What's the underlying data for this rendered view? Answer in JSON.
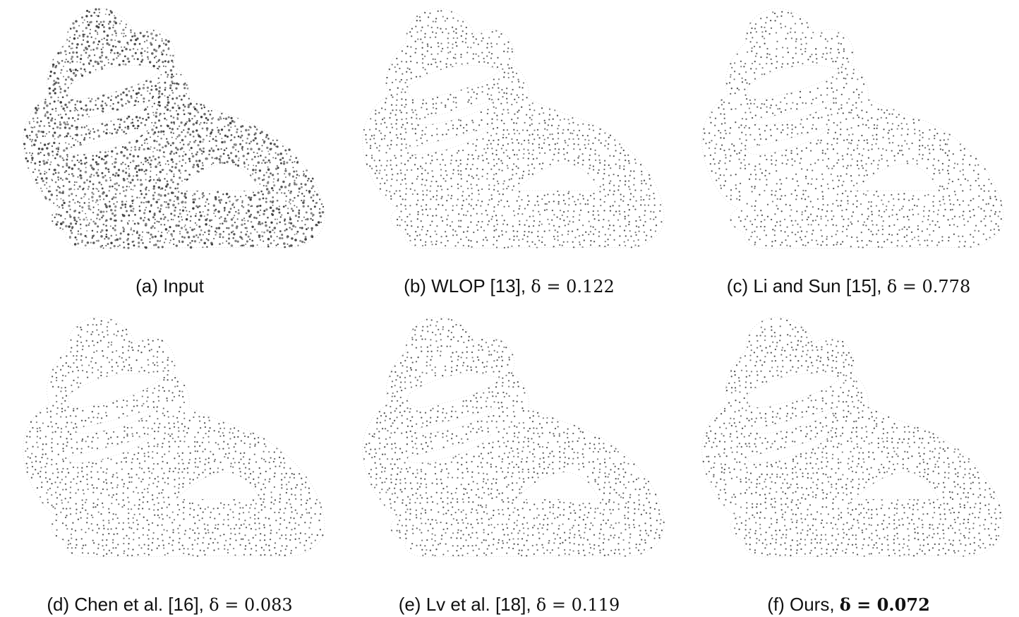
{
  "figure": {
    "panels": [
      {
        "id": "a",
        "label": "(a) Input",
        "metric_text": "",
        "metric_bold": false,
        "density": 0.7,
        "dot_color": "#555555",
        "noise": true
      },
      {
        "id": "b",
        "label": "(b) WLOP [13], ",
        "metric_text": "δ = 0.122",
        "metric_bold": false,
        "density": 0.5,
        "dot_color": "#6a6a6a",
        "noise": false
      },
      {
        "id": "c",
        "label": "(c) Li and Sun [15], ",
        "metric_text": "δ = 0.778",
        "metric_bold": false,
        "density": 0.4,
        "dot_color": "#5a5a5a",
        "noise": false
      },
      {
        "id": "d",
        "label": "(d) Chen et al. [16], ",
        "metric_text": "δ = 0.083",
        "metric_bold": false,
        "density": 0.5,
        "dot_color": "#6a6a6a",
        "noise": false
      },
      {
        "id": "e",
        "label": "(e) Lv et al. [18], ",
        "metric_text": "δ = 0.119",
        "metric_bold": false,
        "density": 0.5,
        "dot_color": "#6a6a6a",
        "noise": false
      },
      {
        "id": "f",
        "label": "(f) Ours, ",
        "metric_text": "δ = 0.072",
        "metric_bold": true,
        "density": 0.5,
        "dot_color": "#6a6a6a",
        "noise": false
      }
    ]
  }
}
